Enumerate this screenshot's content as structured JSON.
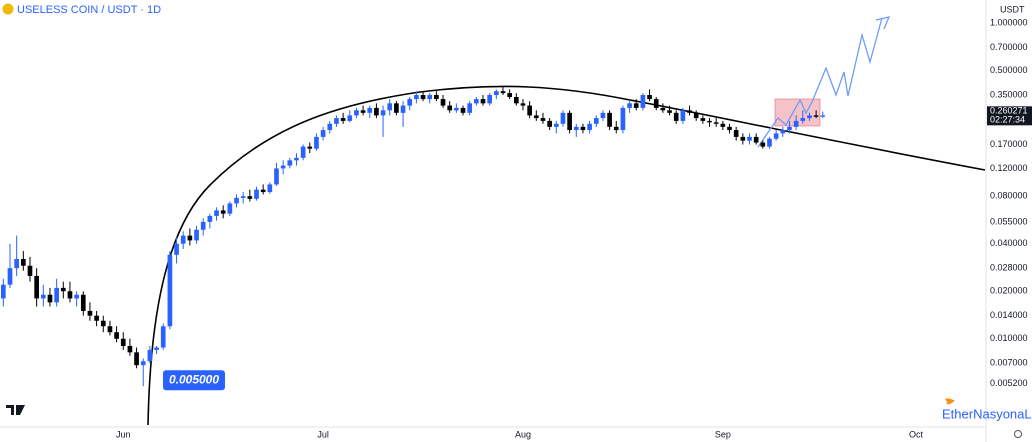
{
  "chart_data": {
    "type": "candlestick",
    "title": "USELESS COIN / USDT · 1D",
    "currency": "USDT",
    "watermark": "EtherNasyonaL",
    "log_scale": true,
    "grid": false,
    "up_color": "#2962ff",
    "down_color": "#000000",
    "ylim": [
      0.0028,
      1.4
    ],
    "yticks": [
      {
        "value": 1,
        "label": "1.000000"
      },
      {
        "value": 0.7,
        "label": "0.700000"
      },
      {
        "value": 0.5,
        "label": "0.500000"
      },
      {
        "value": 0.35,
        "label": "0.350000"
      },
      {
        "value": 0.17,
        "label": "0.170000"
      },
      {
        "value": 0.12,
        "label": "0.120000"
      },
      {
        "value": 0.08,
        "label": "0.080000"
      },
      {
        "value": 0.055,
        "label": "0.055000"
      },
      {
        "value": 0.04,
        "label": "0.040000"
      },
      {
        "value": 0.028,
        "label": "0.028000"
      },
      {
        "value": 0.02,
        "label": "0.020000"
      },
      {
        "value": 0.014,
        "label": "0.014000"
      },
      {
        "value": 0.01,
        "label": "0.010000"
      },
      {
        "value": 0.007,
        "label": "0.007000"
      },
      {
        "value": 0.0052,
        "label": "0.005200"
      }
    ],
    "categories": [
      null,
      null,
      null,
      null,
      null,
      null,
      null,
      null,
      null,
      null,
      null,
      null,
      null,
      null,
      null,
      null,
      null,
      null,
      "Jun",
      null,
      null,
      null,
      null,
      null,
      null,
      null,
      null,
      null,
      null,
      null,
      null,
      null,
      null,
      null,
      null,
      null,
      null,
      null,
      null,
      null,
      null,
      null,
      null,
      null,
      null,
      null,
      null,
      null,
      "Jul",
      null,
      null,
      null,
      null,
      null,
      null,
      null,
      null,
      null,
      null,
      null,
      null,
      null,
      null,
      null,
      null,
      null,
      null,
      null,
      null,
      null,
      null,
      null,
      null,
      null,
      null,
      null,
      null,
      null,
      "Aug",
      null,
      null,
      null,
      null,
      null,
      null,
      null,
      null,
      null,
      null,
      null,
      null,
      null,
      null,
      null,
      null,
      null,
      null,
      null,
      null,
      null,
      null,
      null,
      null,
      null,
      null,
      null,
      null,
      null,
      "Sep",
      null,
      null,
      null,
      null,
      null,
      null,
      null,
      null,
      null,
      null,
      null,
      null,
      null,
      null,
      null,
      null,
      null,
      null,
      null,
      null,
      null,
      null,
      null,
      null,
      null,
      null,
      null,
      null,
      "Oct",
      null,
      null,
      null,
      null,
      null,
      null,
      null,
      null,
      null,
      null
    ],
    "candles": [
      [
        0.018,
        0.024,
        0.016,
        0.022
      ],
      [
        0.022,
        0.04,
        0.021,
        0.028
      ],
      [
        0.028,
        0.045,
        0.025,
        0.032
      ],
      [
        0.032,
        0.036,
        0.027,
        0.029
      ],
      [
        0.029,
        0.033,
        0.023,
        0.025
      ],
      [
        0.025,
        0.028,
        0.016,
        0.018
      ],
      [
        0.018,
        0.022,
        0.016,
        0.019
      ],
      [
        0.019,
        0.021,
        0.016,
        0.017
      ],
      [
        0.017,
        0.024,
        0.016,
        0.021
      ],
      [
        0.021,
        0.023,
        0.018,
        0.02
      ],
      [
        0.02,
        0.023,
        0.017,
        0.018
      ],
      [
        0.018,
        0.02,
        0.016,
        0.019
      ],
      [
        0.019,
        0.02,
        0.014,
        0.015
      ],
      [
        0.015,
        0.017,
        0.013,
        0.014
      ],
      [
        0.014,
        0.015,
        0.012,
        0.013
      ],
      [
        0.013,
        0.014,
        0.011,
        0.012
      ],
      [
        0.012,
        0.013,
        0.0105,
        0.011
      ],
      [
        0.011,
        0.012,
        0.0095,
        0.01
      ],
      [
        0.01,
        0.011,
        0.0085,
        0.009
      ],
      [
        0.009,
        0.01,
        0.0078,
        0.0082
      ],
      [
        0.0082,
        0.0088,
        0.0065,
        0.0068
      ],
      [
        0.0068,
        0.0075,
        0.005,
        0.0072
      ],
      [
        0.0072,
        0.009,
        0.007,
        0.0085
      ],
      [
        0.0085,
        0.009,
        0.008,
        0.0088
      ],
      [
        0.0088,
        0.0125,
        0.0085,
        0.012
      ],
      [
        0.012,
        0.036,
        0.0115,
        0.034
      ],
      [
        0.034,
        0.044,
        0.03,
        0.04
      ],
      [
        0.04,
        0.048,
        0.037,
        0.045
      ],
      [
        0.045,
        0.05,
        0.039,
        0.042
      ],
      [
        0.042,
        0.052,
        0.04,
        0.049
      ],
      [
        0.049,
        0.058,
        0.045,
        0.055
      ],
      [
        0.055,
        0.062,
        0.05,
        0.06
      ],
      [
        0.06,
        0.068,
        0.056,
        0.065
      ],
      [
        0.065,
        0.07,
        0.058,
        0.062
      ],
      [
        0.062,
        0.074,
        0.06,
        0.072
      ],
      [
        0.072,
        0.082,
        0.068,
        0.078
      ],
      [
        0.078,
        0.085,
        0.072,
        0.08
      ],
      [
        0.08,
        0.088,
        0.074,
        0.077
      ],
      [
        0.077,
        0.092,
        0.075,
        0.088
      ],
      [
        0.088,
        0.095,
        0.082,
        0.085
      ],
      [
        0.085,
        0.098,
        0.083,
        0.095
      ],
      [
        0.095,
        0.13,
        0.093,
        0.12
      ],
      [
        0.12,
        0.135,
        0.11,
        0.125
      ],
      [
        0.125,
        0.14,
        0.12,
        0.135
      ],
      [
        0.135,
        0.15,
        0.125,
        0.14
      ],
      [
        0.14,
        0.17,
        0.135,
        0.165
      ],
      [
        0.165,
        0.175,
        0.15,
        0.16
      ],
      [
        0.16,
        0.2,
        0.155,
        0.19
      ],
      [
        0.19,
        0.22,
        0.18,
        0.21
      ],
      [
        0.21,
        0.24,
        0.2,
        0.23
      ],
      [
        0.23,
        0.26,
        0.22,
        0.25
      ],
      [
        0.25,
        0.27,
        0.23,
        0.24
      ],
      [
        0.24,
        0.28,
        0.235,
        0.26
      ],
      [
        0.26,
        0.29,
        0.25,
        0.28
      ],
      [
        0.28,
        0.3,
        0.26,
        0.27
      ],
      [
        0.27,
        0.3,
        0.25,
        0.29
      ],
      [
        0.29,
        0.31,
        0.25,
        0.26
      ],
      [
        0.26,
        0.3,
        0.19,
        0.28
      ],
      [
        0.28,
        0.33,
        0.26,
        0.31
      ],
      [
        0.31,
        0.32,
        0.26,
        0.27
      ],
      [
        0.27,
        0.32,
        0.22,
        0.3
      ],
      [
        0.3,
        0.34,
        0.28,
        0.33
      ],
      [
        0.33,
        0.37,
        0.31,
        0.35
      ],
      [
        0.35,
        0.37,
        0.32,
        0.33
      ],
      [
        0.33,
        0.36,
        0.31,
        0.35
      ],
      [
        0.35,
        0.37,
        0.32,
        0.33
      ],
      [
        0.33,
        0.35,
        0.29,
        0.3
      ],
      [
        0.3,
        0.32,
        0.27,
        0.28
      ],
      [
        0.28,
        0.31,
        0.27,
        0.29
      ],
      [
        0.29,
        0.3,
        0.26,
        0.27
      ],
      [
        0.27,
        0.32,
        0.26,
        0.31
      ],
      [
        0.31,
        0.34,
        0.3,
        0.33
      ],
      [
        0.33,
        0.35,
        0.3,
        0.31
      ],
      [
        0.31,
        0.36,
        0.3,
        0.35
      ],
      [
        0.35,
        0.38,
        0.33,
        0.37
      ],
      [
        0.37,
        0.4,
        0.35,
        0.36
      ],
      [
        0.36,
        0.38,
        0.33,
        0.34
      ],
      [
        0.34,
        0.36,
        0.3,
        0.31
      ],
      [
        0.31,
        0.33,
        0.28,
        0.3
      ],
      [
        0.3,
        0.32,
        0.25,
        0.26
      ],
      [
        0.26,
        0.28,
        0.24,
        0.25
      ],
      [
        0.25,
        0.27,
        0.23,
        0.24
      ],
      [
        0.24,
        0.25,
        0.21,
        0.22
      ],
      [
        0.22,
        0.24,
        0.2,
        0.23
      ],
      [
        0.23,
        0.28,
        0.22,
        0.27
      ],
      [
        0.27,
        0.28,
        0.2,
        0.21
      ],
      [
        0.21,
        0.23,
        0.19,
        0.22
      ],
      [
        0.22,
        0.23,
        0.2,
        0.21
      ],
      [
        0.21,
        0.24,
        0.2,
        0.23
      ],
      [
        0.23,
        0.26,
        0.22,
        0.25
      ],
      [
        0.25,
        0.28,
        0.24,
        0.27
      ],
      [
        0.27,
        0.28,
        0.21,
        0.22
      ],
      [
        0.22,
        0.24,
        0.2,
        0.21
      ],
      [
        0.21,
        0.3,
        0.2,
        0.29
      ],
      [
        0.29,
        0.32,
        0.27,
        0.31
      ],
      [
        0.31,
        0.33,
        0.28,
        0.29
      ],
      [
        0.29,
        0.36,
        0.28,
        0.35
      ],
      [
        0.35,
        0.38,
        0.32,
        0.33
      ],
      [
        0.33,
        0.34,
        0.28,
        0.29
      ],
      [
        0.29,
        0.31,
        0.27,
        0.28
      ],
      [
        0.28,
        0.3,
        0.26,
        0.27
      ],
      [
        0.27,
        0.28,
        0.23,
        0.24
      ],
      [
        0.24,
        0.29,
        0.23,
        0.28
      ],
      [
        0.28,
        0.3,
        0.26,
        0.27
      ],
      [
        0.27,
        0.28,
        0.24,
        0.25
      ],
      [
        0.25,
        0.26,
        0.23,
        0.24
      ],
      [
        0.24,
        0.25,
        0.22,
        0.235
      ],
      [
        0.235,
        0.25,
        0.22,
        0.23
      ],
      [
        0.23,
        0.24,
        0.21,
        0.22
      ],
      [
        0.22,
        0.23,
        0.2,
        0.21
      ],
      [
        0.21,
        0.22,
        0.18,
        0.19
      ],
      [
        0.19,
        0.2,
        0.17,
        0.18
      ],
      [
        0.18,
        0.2,
        0.17,
        0.19
      ],
      [
        0.19,
        0.2,
        0.17,
        0.175
      ],
      [
        0.175,
        0.18,
        0.16,
        0.165
      ],
      [
        0.165,
        0.19,
        0.16,
        0.185
      ],
      [
        0.185,
        0.21,
        0.18,
        0.2
      ],
      [
        0.2,
        0.22,
        0.19,
        0.21
      ],
      [
        0.21,
        0.24,
        0.2,
        0.22
      ],
      [
        0.22,
        0.26,
        0.21,
        0.24
      ],
      [
        0.24,
        0.28,
        0.23,
        0.25
      ],
      [
        0.25,
        0.27,
        0.24,
        0.26
      ],
      [
        0.26,
        0.28,
        0.25,
        0.255
      ],
      [
        0.255,
        0.275,
        0.25,
        0.26
      ],
      null,
      null,
      null,
      null,
      null,
      null,
      null,
      null,
      null,
      null,
      null,
      null,
      null,
      null,
      null,
      null,
      null,
      null,
      null,
      null,
      null,
      null,
      null,
      null,
      null,
      null,
      null
    ],
    "last_price": {
      "value": 0.260271,
      "countdown": "02:27:34"
    },
    "annotation": {
      "value": 0.005,
      "label": "0.005000"
    }
  }
}
